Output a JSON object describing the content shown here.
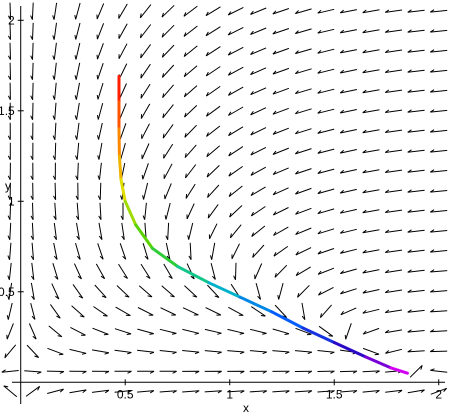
{
  "chart_data": {
    "type": "direction-field",
    "xlabel": "x",
    "ylabel": "y",
    "xlim": [
      -0.08,
      2.03
    ],
    "ylim": [
      -0.12,
      2.09
    ],
    "x_ticks": [
      {
        "value": 0.5,
        "label": "0.5"
      },
      {
        "value": 1,
        "label": "1"
      },
      {
        "value": 1.5,
        "label": "1.5"
      },
      {
        "value": 2,
        "label": "2"
      }
    ],
    "y_ticks": [
      {
        "value": 0.5,
        "label": "0.5"
      },
      {
        "value": 1,
        "label": "1"
      },
      {
        "value": 1.5,
        "label": "1.5"
      },
      {
        "value": 2,
        "label": "2"
      }
    ],
    "field": {
      "x_range": [
        -0.05,
        2.0
      ],
      "y_range": [
        -0.05,
        2.05
      ],
      "grid": [
        20,
        20
      ]
    },
    "trajectory": {
      "points": [
        [
          0.47,
          1.69
        ],
        [
          0.47,
          1.55
        ],
        [
          0.47,
          1.4
        ],
        [
          0.472,
          1.25
        ],
        [
          0.48,
          1.12
        ],
        [
          0.5,
          1.0
        ],
        [
          0.55,
          0.87
        ],
        [
          0.63,
          0.74
        ],
        [
          0.75,
          0.64
        ],
        [
          0.9,
          0.55
        ],
        [
          1.05,
          0.47
        ],
        [
          1.2,
          0.39
        ],
        [
          1.35,
          0.3
        ],
        [
          1.5,
          0.22
        ],
        [
          1.65,
          0.14
        ],
        [
          1.77,
          0.08
        ],
        [
          1.85,
          0.05
        ]
      ],
      "colors": [
        "#ff0000",
        "#ff7f00",
        "#e0e000",
        "#40d000",
        "#00c0c0",
        "#0060ff",
        "#3000c0",
        "#ff00ff"
      ]
    },
    "grid": false,
    "legend": "none"
  }
}
